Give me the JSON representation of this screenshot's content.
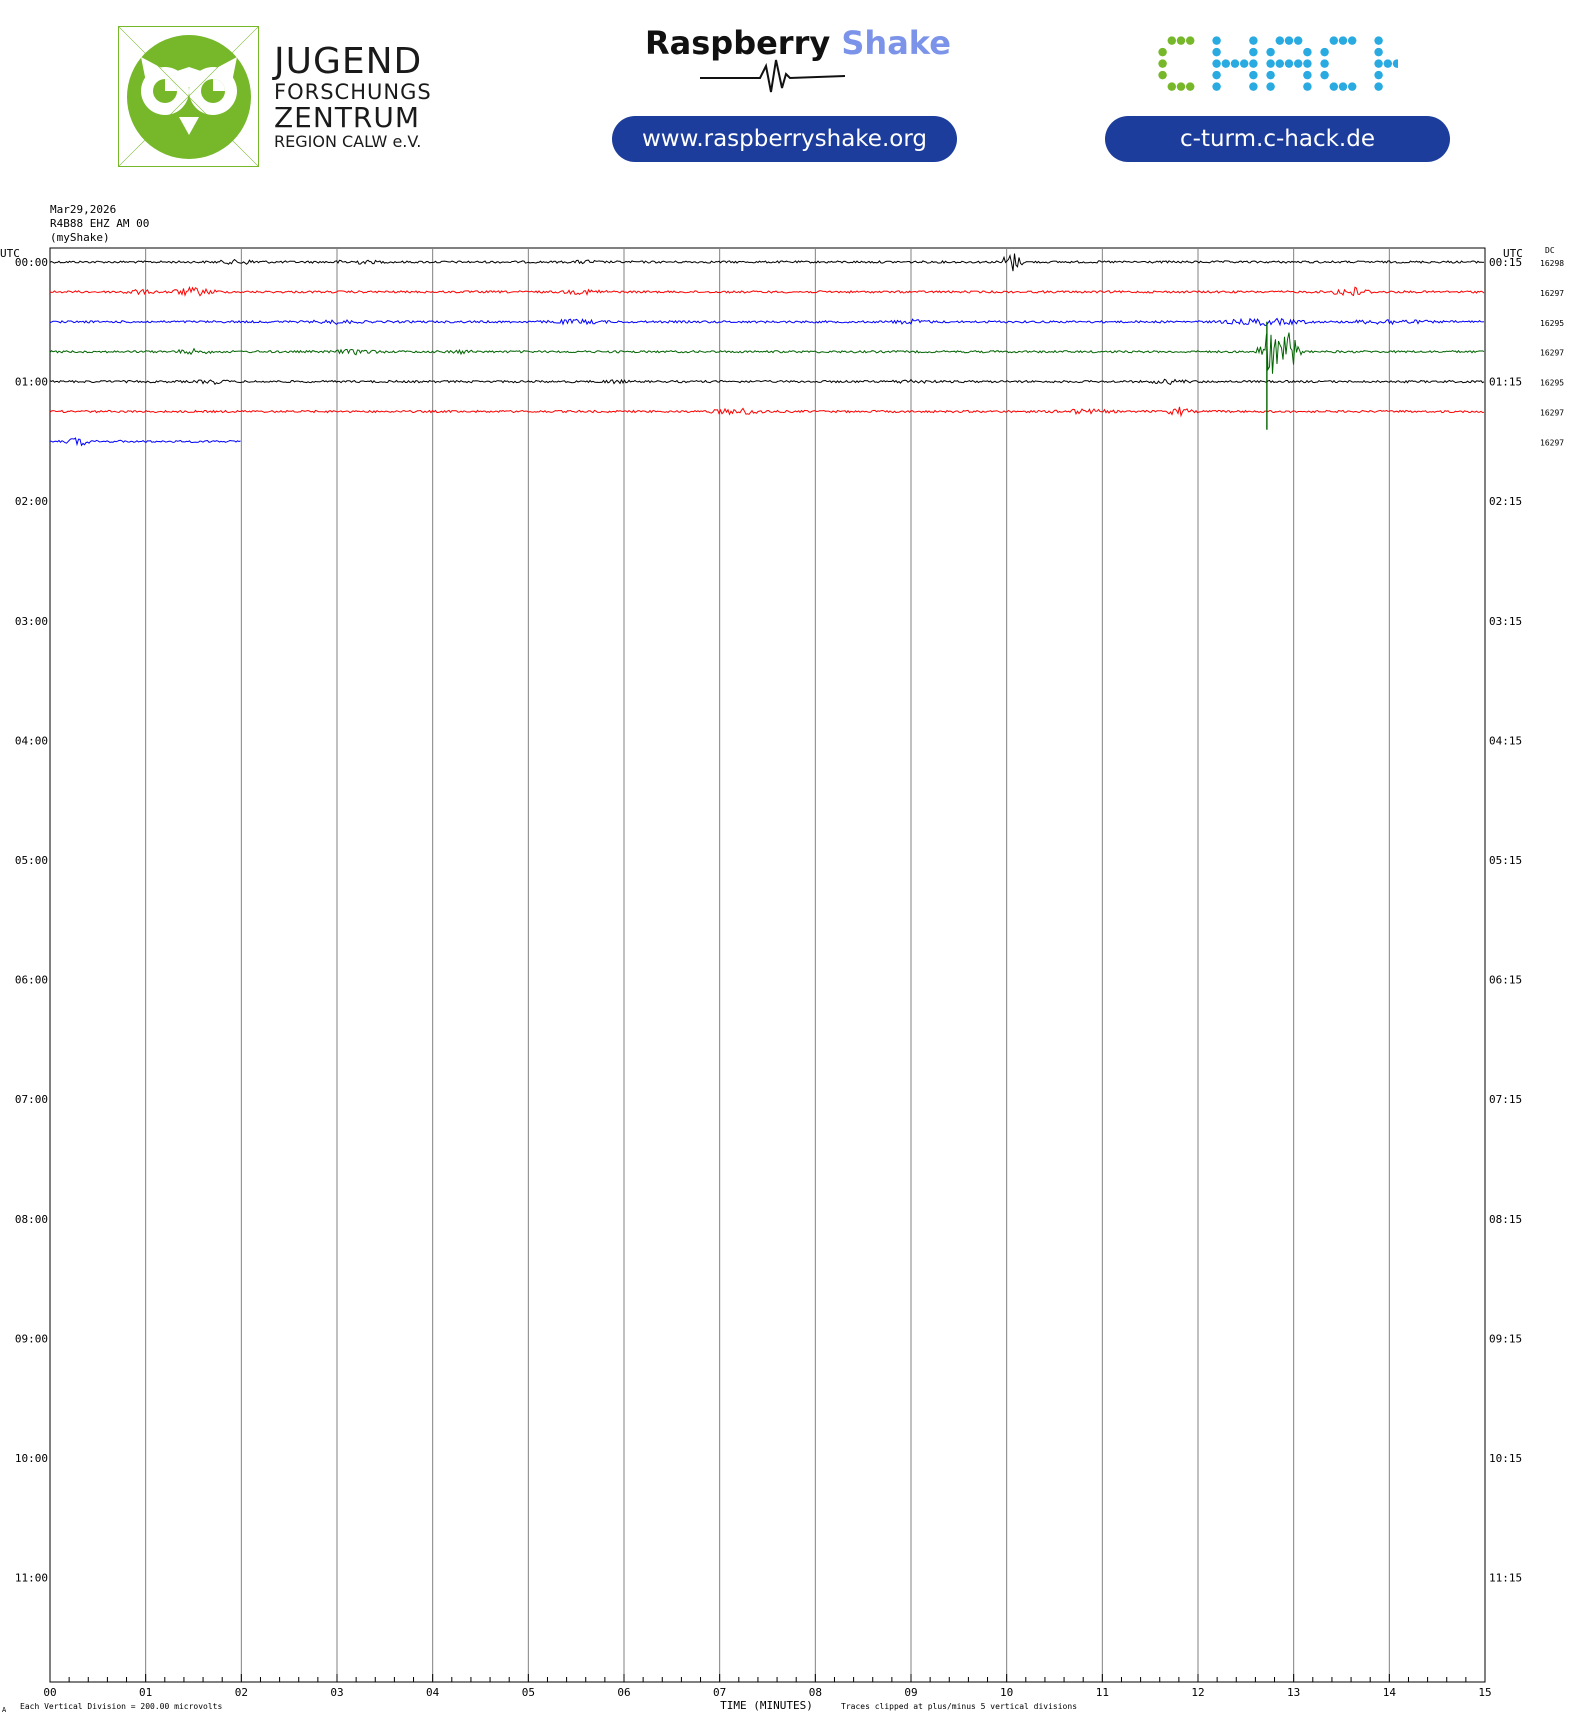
{
  "logos": {
    "jfz": {
      "line1": "JUGEND",
      "line2": "FORSCHUNGS",
      "line3": "ZENTRUM",
      "line4": "REGION CALW e.V.",
      "color": "#76b82a"
    },
    "raspberry_shake": {
      "word1": "Raspberry",
      "word2": "Shake",
      "url": "www.raspberryshake.org",
      "accent": "#7b93e8",
      "pill_color": "#1c3d9c"
    },
    "chack": {
      "wordmark": "CHACK",
      "c_color": "#76b82a",
      "hack_color": "#29aae1",
      "url": "c-turm.c-hack.de"
    }
  },
  "header": {
    "date": "Mar29,2026",
    "station": "R4B88 EHZ AM 00",
    "source": "(myShake)"
  },
  "chart_data": {
    "type": "line",
    "subtype": "helicorder",
    "x_label": "TIME (MINUTES)",
    "x_ticks": [
      "00",
      "01",
      "02",
      "03",
      "04",
      "05",
      "06",
      "07",
      "08",
      "09",
      "10",
      "11",
      "12",
      "13",
      "14",
      "15"
    ],
    "x_range": [
      0,
      15
    ],
    "left_axis_title": "UTC",
    "right_axis_title": "UTC",
    "dc_title": "DC",
    "left_ticks": [
      "00:00",
      "01:00",
      "02:00",
      "03:00",
      "04:00",
      "05:00",
      "06:00",
      "07:00",
      "08:00",
      "09:00",
      "10:00",
      "11:00"
    ],
    "right_ticks": [
      "00:15",
      "01:15",
      "02:15",
      "03:15",
      "04:15",
      "05:15",
      "06:15",
      "07:15",
      "08:15",
      "09:15",
      "10:15",
      "11:15"
    ],
    "row_count": 48,
    "row_minutes": 15,
    "grid_vertical": true,
    "colors": [
      "#000000",
      "#ff0000",
      "#0000ff",
      "#006400"
    ],
    "series": [
      {
        "row": 0,
        "start": "00:00",
        "color": "#000000",
        "dc": "16298",
        "end_minute": 15,
        "bursts": [
          [
            2.0,
            0.5,
            3
          ],
          [
            3.2,
            0.6,
            2.5
          ],
          [
            5.6,
            0.3,
            2.5
          ],
          [
            10.05,
            0.15,
            12
          ]
        ]
      },
      {
        "row": 1,
        "start": "00:15",
        "color": "#ff0000",
        "dc": "16297",
        "end_minute": 15,
        "bursts": [
          [
            0.9,
            0.4,
            3
          ],
          [
            1.5,
            0.4,
            5
          ],
          [
            5.6,
            0.5,
            3
          ],
          [
            13.6,
            0.3,
            6
          ]
        ]
      },
      {
        "row": 2,
        "start": "00:30",
        "color": "#0000ff",
        "dc": "16295",
        "end_minute": 15,
        "bursts": [
          [
            3.0,
            0.6,
            2.5
          ],
          [
            5.5,
            0.6,
            3
          ],
          [
            9.0,
            0.4,
            3
          ],
          [
            12.7,
            0.8,
            4
          ],
          [
            14.0,
            0.8,
            3
          ]
        ]
      },
      {
        "row": 3,
        "start": "00:45",
        "color": "#006400",
        "dc": "16297",
        "end_minute": 15,
        "bursts": [
          [
            1.5,
            0.4,
            3
          ],
          [
            3.2,
            0.5,
            3
          ],
          [
            4.3,
            0.3,
            2.5
          ],
          [
            12.75,
            0.15,
            30
          ],
          [
            12.95,
            0.15,
            22
          ]
        ]
      },
      {
        "row": 4,
        "start": "01:00",
        "color": "#000000",
        "dc": "16295",
        "end_minute": 15,
        "bursts": [
          [
            1.7,
            0.3,
            3
          ],
          [
            5.9,
            0.3,
            2.5
          ],
          [
            9.0,
            0.5,
            2.5
          ],
          [
            11.7,
            0.4,
            3
          ]
        ]
      },
      {
        "row": 5,
        "start": "01:15",
        "color": "#ff0000",
        "dc": "16297",
        "end_minute": 15,
        "bursts": [
          [
            7.2,
            0.5,
            4
          ],
          [
            10.8,
            0.6,
            3
          ],
          [
            11.8,
            0.2,
            5
          ]
        ]
      },
      {
        "row": 6,
        "start": "01:30",
        "color": "#0000ff",
        "dc": "16297",
        "end_minute": 2.0,
        "bursts": [
          [
            0.3,
            0.2,
            5
          ]
        ]
      }
    ],
    "spikes": [
      {
        "row": 3,
        "minute": 12.72,
        "up": 30,
        "down": 78
      }
    ],
    "footer_left": "Each Vertical Division =  200.00 microvolts",
    "footer_right": "Traces clipped at plus/minus 5 vertical divisions",
    "corner_mark": "A"
  }
}
